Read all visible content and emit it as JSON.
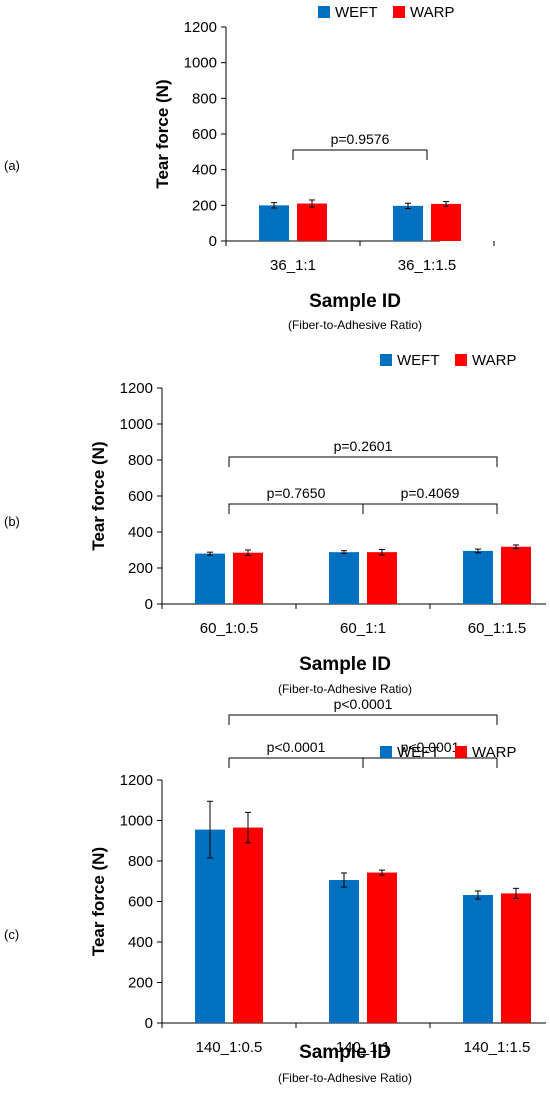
{
  "colors": {
    "weft": "#0070C0",
    "warp": "#FF0000",
    "axis": "#000000",
    "text": "#000000"
  },
  "chart_data": [
    {
      "panel": "(a)",
      "type": "bar",
      "ylabel": "Tear force (N)",
      "xlabel": "Sample ID",
      "xsublabel": "(Fiber-to-Adhesive Ratio)",
      "ylim": [
        0,
        1200
      ],
      "yticks": [
        0,
        200,
        400,
        600,
        800,
        1000,
        1200
      ],
      "grid": false,
      "legend": "top-right",
      "categories": [
        "36_1:1",
        "36_1:1.5"
      ],
      "series": [
        {
          "name": "WEFT",
          "values": [
            200,
            197
          ],
          "errors": [
            15,
            15
          ]
        },
        {
          "name": "WARP",
          "values": [
            210,
            208
          ],
          "errors": [
            20,
            13
          ]
        }
      ],
      "annotations": [
        {
          "from": "36_1:1",
          "to": "36_1:1.5",
          "text": "p=0.9576"
        }
      ]
    },
    {
      "panel": "(b)",
      "type": "bar",
      "ylabel": "Tear force (N)",
      "xlabel": "Sample ID",
      "xsublabel": "(Fiber-to-Adhesive Ratio)",
      "ylim": [
        0,
        1200
      ],
      "yticks": [
        0,
        200,
        400,
        600,
        800,
        1000,
        1200
      ],
      "grid": false,
      "legend": "top-right",
      "categories": [
        "60_1:0.5",
        "60_1:1",
        "60_1:1.5"
      ],
      "series": [
        {
          "name": "WEFT",
          "values": [
            280,
            288,
            295
          ],
          "errors": [
            8,
            8,
            10
          ]
        },
        {
          "name": "WARP",
          "values": [
            285,
            288,
            318
          ],
          "errors": [
            15,
            15,
            10
          ]
        }
      ],
      "annotations": [
        {
          "from": "60_1:0.5",
          "to": "60_1:1",
          "text": "p=0.7650"
        },
        {
          "from": "60_1:1",
          "to": "60_1:1.5",
          "text": "p=0.4069"
        },
        {
          "from": "60_1:0.5",
          "to": "60_1:1.5",
          "text": "p=0.2601"
        }
      ]
    },
    {
      "panel": "(c)",
      "type": "bar",
      "ylabel": "Tear force (N)",
      "xlabel": "Sample ID",
      "xsublabel": "(Fiber-to-Adhesive Ratio)",
      "ylim": [
        0,
        1200
      ],
      "yticks": [
        0,
        200,
        400,
        600,
        800,
        1000,
        1200
      ],
      "grid": false,
      "legend": "top-right",
      "categories": [
        "140_1:0.5",
        "140_1:1",
        "140_1:1.5"
      ],
      "series": [
        {
          "name": "WEFT",
          "values": [
            955,
            706,
            632
          ],
          "errors": [
            140,
            35,
            20
          ]
        },
        {
          "name": "WARP",
          "values": [
            965,
            743,
            640
          ],
          "errors": [
            75,
            12,
            25
          ]
        }
      ],
      "annotations": [
        {
          "from": "140_1:0.5",
          "to": "140_1:1",
          "text": "p<0.0001"
        },
        {
          "from": "140_1:1",
          "to": "140_1:1.5",
          "text": "p<0.0001"
        },
        {
          "from": "140_1:0.5",
          "to": "140_1:1.5",
          "text": "p<0.0001"
        }
      ]
    }
  ]
}
